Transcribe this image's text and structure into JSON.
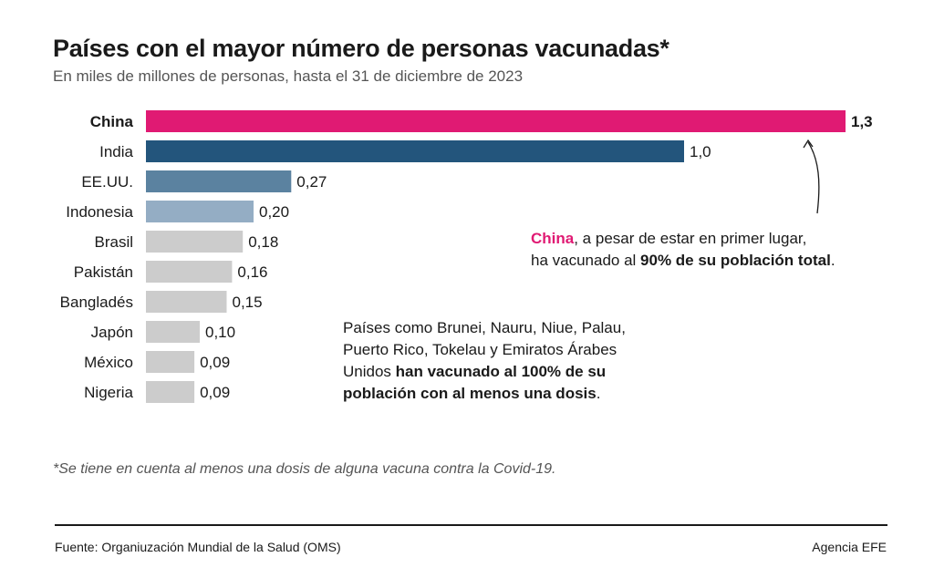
{
  "title": "Países con el mayor número de personas vacunadas*",
  "subtitle": "En miles de millones de personas, hasta el 31 de diciembre de 2023",
  "chart_data": {
    "type": "bar",
    "orientation": "horizontal",
    "categories": [
      "China",
      "India",
      "EE.UU.",
      "Indonesia",
      "Brasil",
      "Pakistán",
      "Bangladés",
      "Japón",
      "México",
      "Nigeria"
    ],
    "values": [
      1.3,
      1.0,
      0.27,
      0.2,
      0.18,
      0.16,
      0.15,
      0.1,
      0.09,
      0.09
    ],
    "value_labels": [
      "1,3",
      "1,0",
      "0,27",
      "0,20",
      "0,18",
      "0,16",
      "0,15",
      "0,10",
      "0,09",
      "0,09"
    ],
    "colors": [
      "#e01a73",
      "#23557c",
      "#5b82a0",
      "#94adc4",
      "#cccccc",
      "#cccccc",
      "#cccccc",
      "#cccccc",
      "#cccccc",
      "#cccccc"
    ],
    "highlight": "China",
    "grid": false,
    "legend": "none"
  },
  "annotation_china": {
    "country": "China",
    "text1": ", a pesar de estar en primer lugar,",
    "text2": "ha vacunado al ",
    "bold": "90% de su población total",
    "end": "."
  },
  "annotation_full": {
    "line1": "Países como Brunei, Nauru, Niue, Palau,",
    "line2": "Puerto Rico, Tokelau y Emiratos Árabes",
    "line3_plain": "Unidos ",
    "line3_bold": "han vacunado al 100% de su",
    "line4_bold": "población con al menos una dosis",
    "line4_end": "."
  },
  "footnote": "*Se tiene en cuenta al menos una dosis de alguna vacuna contra la Covid-19.",
  "source": "Fuente: Organiuzación Mundial de la Salud (OMS)",
  "agency": "Agencia EFE"
}
